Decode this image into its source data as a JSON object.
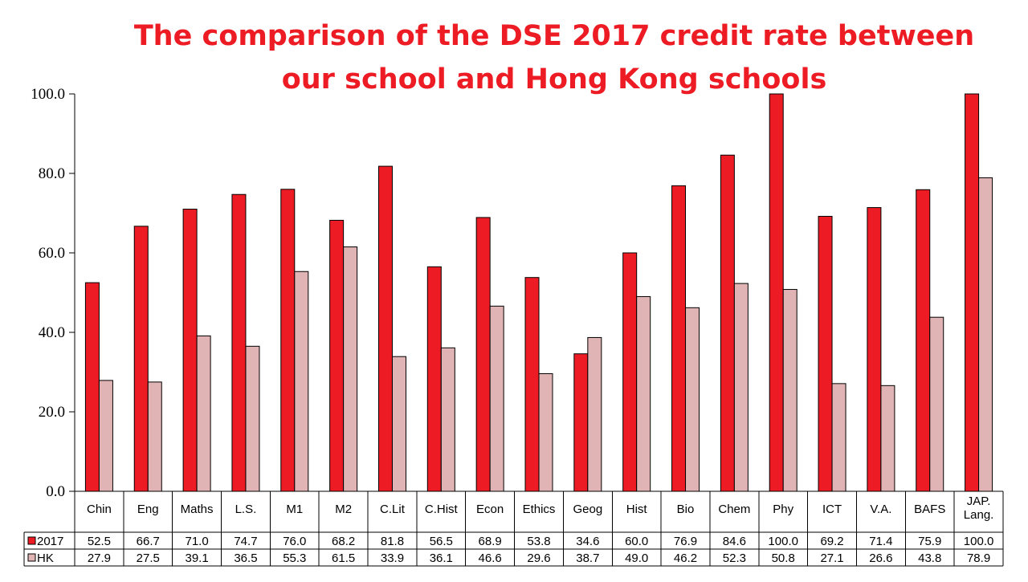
{
  "title_line1": "The comparison of the DSE 2017 credit rate between",
  "title_line2": "our school and Hong Kong schools",
  "chart_data": {
    "type": "bar",
    "title": "The comparison of the DSE 2017 credit rate between our school and Hong Kong schools",
    "categories": [
      [
        "Chin"
      ],
      [
        "Eng"
      ],
      [
        "Maths"
      ],
      [
        "L.S."
      ],
      [
        "M1"
      ],
      [
        "M2"
      ],
      [
        "C.Lit"
      ],
      [
        "C.Hist"
      ],
      [
        "Econ"
      ],
      [
        "Ethics"
      ],
      [
        "Geog"
      ],
      [
        "Hist"
      ],
      [
        "Bio"
      ],
      [
        "Chem"
      ],
      [
        "Phy"
      ],
      [
        "ICT"
      ],
      [
        "V.A."
      ],
      [
        "BAFS"
      ],
      [
        "JAP.",
        "Lang."
      ]
    ],
    "series": [
      {
        "name": "2017",
        "color": "#ed1c24",
        "values": [
          52.5,
          66.7,
          71.0,
          74.7,
          76.0,
          68.2,
          81.8,
          56.5,
          68.9,
          53.8,
          34.6,
          60.0,
          76.9,
          84.6,
          100.0,
          69.2,
          71.4,
          75.9,
          100.0
        ],
        "labels": [
          "52.5",
          "66.7",
          "71.0",
          "74.7",
          "76.0",
          "68.2",
          "81.8",
          "56.5",
          "68.9",
          "53.8",
          "34.6",
          "60.0",
          "76.9",
          "84.6",
          "100.0",
          "69.2",
          "71.4",
          "75.9",
          "100.0"
        ]
      },
      {
        "name": "HK",
        "color": "#e0b4b4",
        "values": [
          27.9,
          27.5,
          39.1,
          36.5,
          55.3,
          61.5,
          33.9,
          36.1,
          46.6,
          29.6,
          38.7,
          49.0,
          46.2,
          52.3,
          50.8,
          27.1,
          26.6,
          43.8,
          78.9
        ],
        "labels": [
          "27.9",
          "27.5",
          "39.1",
          "36.5",
          "55.3",
          "61.5",
          "33.9",
          "36.1",
          "46.6",
          "29.6",
          "38.7",
          "49.0",
          "46.2",
          "52.3",
          "50.8",
          "27.1",
          "26.6",
          "43.8",
          "78.9"
        ]
      }
    ],
    "ylim": [
      0,
      100
    ],
    "yticks": [
      "0.0",
      "20.0",
      "40.0",
      "60.0",
      "80.0",
      "100.0"
    ],
    "legend": "data-table"
  }
}
